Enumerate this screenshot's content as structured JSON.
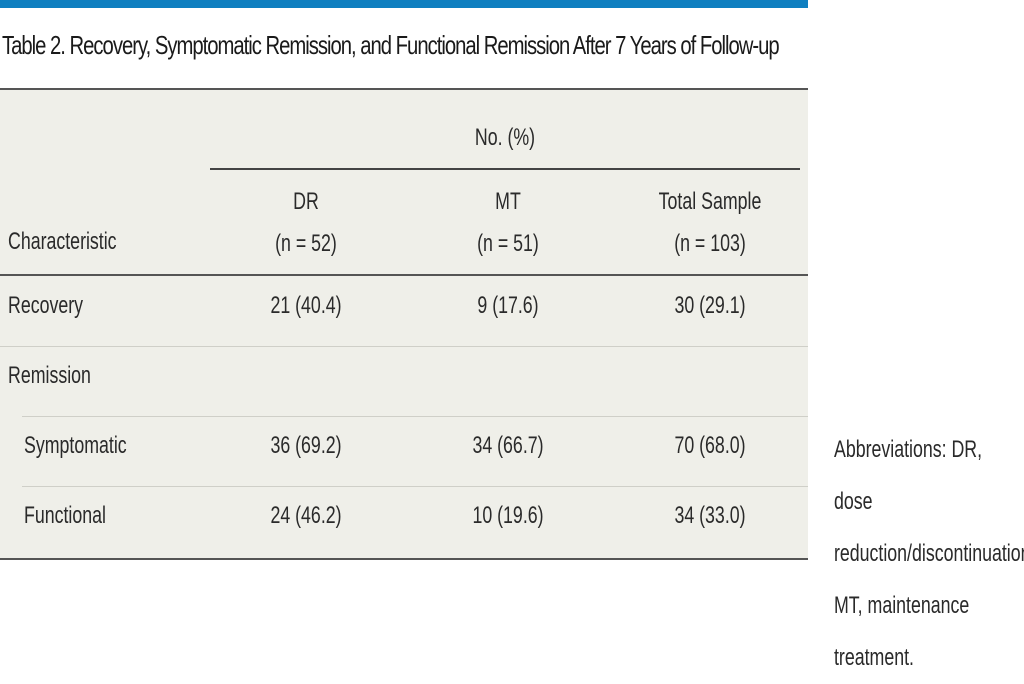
{
  "title": "Table 2. Recovery, Symptomatic Remission, and Functional Remission After 7 Years of Follow-up",
  "table": {
    "group_header": "No. (%)",
    "characteristic_header": "Characteristic",
    "columns": [
      {
        "label": "DR",
        "n": "(n = 52)"
      },
      {
        "label": "MT",
        "n": "(n = 51)"
      },
      {
        "label": "Total Sample",
        "n": "(n = 103)"
      }
    ],
    "rows": [
      {
        "label": "Recovery",
        "values": [
          "21 (40.4)",
          "9 (17.6)",
          "30 (29.1)"
        ]
      },
      {
        "label": "Remission"
      },
      {
        "label": "Symptomatic",
        "values": [
          "36 (69.2)",
          "34 (66.7)",
          "70 (68.0)"
        ]
      },
      {
        "label": "Functional",
        "values": [
          "24 (46.2)",
          "10 (19.6)",
          "34 (33.0)"
        ]
      }
    ]
  },
  "footnote": "Abbreviations: DR, dose reduction/discontinuation; MT, maintenance treatment.",
  "colors": {
    "accent_bar": "#0f7fc0",
    "table_background": "#efefe9"
  }
}
